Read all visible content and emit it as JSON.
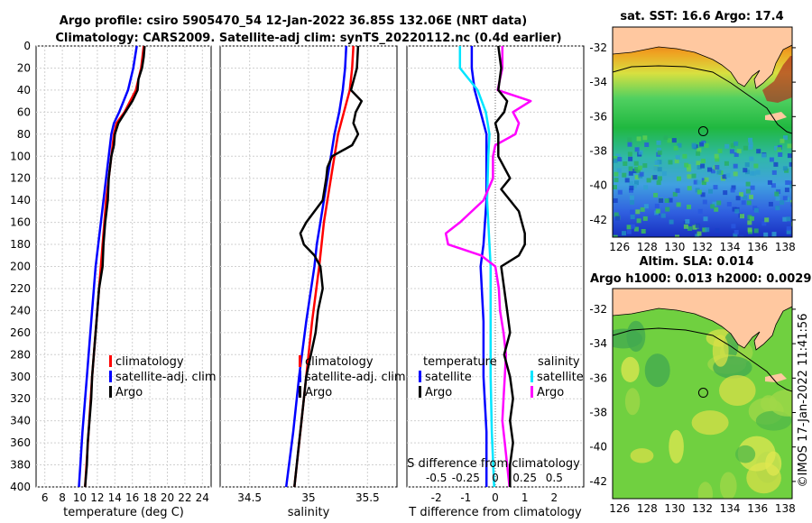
{
  "header": {
    "line1": "Argo profile: csiro 5905470_54 12-Jan-2022 36.85S 132.06E (NRT data)",
    "line2": "Climatology: CARS2009. Satellite-adj clim: synTS_20220112.nc (0.4d earlier)"
  },
  "credit": "©IMOS 17-Jan-2022 11:41:56",
  "colors": {
    "climatology": "#ff0000",
    "satellite": "#0000ff",
    "argo": "#000000",
    "sal_satellite": "#00e5ff",
    "sal_argo": "#ff00ff",
    "land": "#ffc8a0"
  },
  "chart_data": [
    {
      "type": "line",
      "name": "temperature-profile",
      "xlabel": "temperature (deg C)",
      "ylabel": "",
      "xlim": [
        5,
        25
      ],
      "ylim": [
        400,
        0
      ],
      "xticks": [
        6,
        8,
        10,
        12,
        14,
        16,
        18,
        20,
        22,
        24
      ],
      "yticks": [
        0,
        20,
        40,
        60,
        80,
        100,
        120,
        140,
        160,
        180,
        200,
        220,
        240,
        260,
        280,
        300,
        320,
        340,
        360,
        380,
        400
      ],
      "legend": [
        "climatology",
        "satellite-adj. clim",
        "Argo"
      ],
      "series": [
        {
          "name": "climatology",
          "depth": [
            0,
            20,
            40,
            60,
            70,
            80,
            100,
            120,
            140,
            160,
            180,
            200,
            250,
            300,
            350,
            400
          ],
          "values": [
            17.3,
            17.0,
            16.4,
            15.1,
            14.2,
            13.9,
            13.6,
            13.3,
            13.0,
            12.8,
            12.6,
            12.4,
            11.9,
            11.4,
            11.0,
            10.6
          ]
        },
        {
          "name": "satellite-adj. clim",
          "depth": [
            0,
            20,
            40,
            60,
            70,
            80,
            100,
            120,
            140,
            160,
            180,
            200,
            250,
            300,
            350,
            400
          ],
          "values": [
            16.5,
            16.1,
            15.5,
            14.5,
            13.9,
            13.6,
            13.3,
            13.0,
            12.7,
            12.4,
            12.1,
            11.8,
            11.3,
            10.8,
            10.3,
            9.9
          ]
        },
        {
          "name": "Argo",
          "depth": [
            0,
            10,
            20,
            30,
            40,
            50,
            60,
            70,
            80,
            90,
            100,
            120,
            140,
            160,
            180,
            200,
            220,
            240,
            260,
            280,
            300,
            320,
            340,
            360,
            380,
            400
          ],
          "values": [
            17.4,
            17.3,
            17.1,
            16.7,
            16.6,
            16.0,
            15.2,
            14.4,
            14.0,
            13.9,
            13.6,
            13.3,
            13.2,
            12.9,
            12.7,
            12.6,
            12.2,
            12.0,
            11.8,
            11.6,
            11.4,
            11.3,
            11.1,
            10.9,
            10.8,
            10.6
          ]
        }
      ]
    },
    {
      "type": "line",
      "name": "salinity-profile",
      "xlabel": "salinity",
      "xlim": [
        34.25,
        35.75
      ],
      "ylim": [
        400,
        0
      ],
      "xticks": [
        34.5,
        35,
        35.5
      ],
      "legend": [
        "climatology",
        "satellite-adj. clim",
        "Argo"
      ],
      "series": [
        {
          "name": "climatology",
          "depth": [
            0,
            20,
            40,
            60,
            80,
            100,
            120,
            140,
            160,
            180,
            200,
            250,
            300,
            350,
            400
          ],
          "values": [
            35.38,
            35.37,
            35.35,
            35.3,
            35.25,
            35.22,
            35.19,
            35.16,
            35.13,
            35.11,
            35.09,
            35.03,
            34.98,
            34.93,
            34.88
          ]
        },
        {
          "name": "satellite-adj. clim",
          "depth": [
            0,
            20,
            40,
            60,
            80,
            100,
            120,
            140,
            160,
            180,
            200,
            250,
            300,
            350,
            400
          ],
          "values": [
            35.32,
            35.31,
            35.29,
            35.26,
            35.22,
            35.19,
            35.16,
            35.13,
            35.1,
            35.07,
            35.05,
            34.98,
            34.92,
            34.87,
            34.81
          ]
        },
        {
          "name": "Argo",
          "depth": [
            0,
            20,
            40,
            50,
            60,
            70,
            80,
            90,
            100,
            110,
            120,
            140,
            160,
            170,
            180,
            190,
            200,
            220,
            240,
            260,
            280,
            300,
            320,
            340,
            360,
            380,
            400
          ],
          "values": [
            35.42,
            35.41,
            35.36,
            35.45,
            35.4,
            35.38,
            35.42,
            35.37,
            35.2,
            35.16,
            35.15,
            35.12,
            34.98,
            34.93,
            34.96,
            35.05,
            35.1,
            35.12,
            35.08,
            35.06,
            35.02,
            34.98,
            34.96,
            34.94,
            34.92,
            34.9,
            34.88
          ]
        }
      ]
    },
    {
      "type": "line",
      "name": "difference-from-climatology",
      "xlabel": "T difference from climatology",
      "top_xlabel": "S difference from climatology",
      "xlim": [
        -3,
        3
      ],
      "ylim": [
        400,
        0
      ],
      "xticks": [
        -2,
        -1,
        0,
        1,
        2
      ],
      "top_xticks": [
        "-0.5",
        "-0.25",
        "0",
        "0.25",
        "0.5"
      ],
      "legend_temperature_title": "temperature",
      "legend_salinity_title": "salinity",
      "legend": [
        "satellite",
        "Argo",
        "satellite",
        "Argo"
      ],
      "series": [
        {
          "name": "temperature satellite",
          "depth": [
            0,
            20,
            40,
            60,
            80,
            100,
            140,
            180,
            200,
            250,
            300,
            350,
            400
          ],
          "values": [
            -0.8,
            -0.8,
            -0.7,
            -0.5,
            -0.3,
            -0.3,
            -0.3,
            -0.4,
            -0.5,
            -0.4,
            -0.4,
            -0.3,
            -0.3
          ]
        },
        {
          "name": "temperature Argo",
          "depth": [
            0,
            20,
            40,
            50,
            60,
            70,
            80,
            100,
            120,
            130,
            150,
            170,
            180,
            190,
            200,
            220,
            240,
            260,
            280,
            300,
            320,
            340,
            360,
            380,
            400
          ],
          "values": [
            0.1,
            0.2,
            0.1,
            0.4,
            0.3,
            0.0,
            0.1,
            0.1,
            0.5,
            0.2,
            0.8,
            1.0,
            1.0,
            0.8,
            0.2,
            0.3,
            0.4,
            0.5,
            0.3,
            0.5,
            0.6,
            0.5,
            0.6,
            0.5,
            0.5
          ]
        },
        {
          "name": "salinity satellite",
          "depth": [
            0,
            20,
            40,
            60,
            80,
            100,
            140,
            180,
            200,
            250,
            300,
            350,
            400
          ],
          "values": [
            -0.3,
            -0.3,
            -0.15,
            -0.08,
            -0.05,
            -0.06,
            -0.07,
            -0.05,
            -0.04,
            -0.04,
            -0.04,
            -0.03,
            -0.01
          ]
        },
        {
          "name": "salinity Argo",
          "depth": [
            0,
            20,
            40,
            50,
            60,
            70,
            80,
            90,
            100,
            120,
            140,
            160,
            170,
            180,
            190,
            200,
            220,
            240,
            260,
            280,
            300,
            320,
            340,
            360,
            380,
            400
          ],
          "values": [
            0.06,
            0.06,
            0.02,
            0.3,
            0.15,
            0.2,
            0.17,
            0.0,
            -0.02,
            -0.02,
            -0.1,
            -0.3,
            -0.42,
            -0.4,
            -0.12,
            0.0,
            0.03,
            0.04,
            0.07,
            0.09,
            0.08,
            0.07,
            0.06,
            0.08,
            0.1,
            0.12
          ]
        }
      ]
    },
    {
      "type": "heatmap",
      "name": "sst-map",
      "title": "sat. SST: 16.6 Argo: 17.4",
      "xlim": [
        125.5,
        138.5
      ],
      "ylim": [
        -43,
        -30.8
      ],
      "xticks": [
        126,
        128,
        130,
        132,
        134,
        136,
        138
      ],
      "yticks": [
        -32,
        -34,
        -36,
        -38,
        -40,
        -42
      ],
      "marker": {
        "lon": 132.06,
        "lat": -36.85
      }
    },
    {
      "type": "heatmap",
      "name": "sla-map",
      "title_line1": "Altim. SLA: 0.014",
      "title_line2": "Argo h1000: 0.013 h2000: 0.0029",
      "xlim": [
        125.5,
        138.5
      ],
      "ylim": [
        -43,
        -30.8
      ],
      "xticks": [
        126,
        128,
        130,
        132,
        134,
        136,
        138
      ],
      "yticks": [
        -32,
        -34,
        -36,
        -38,
        -40,
        -42
      ],
      "marker": {
        "lon": 132.06,
        "lat": -36.85
      }
    }
  ]
}
